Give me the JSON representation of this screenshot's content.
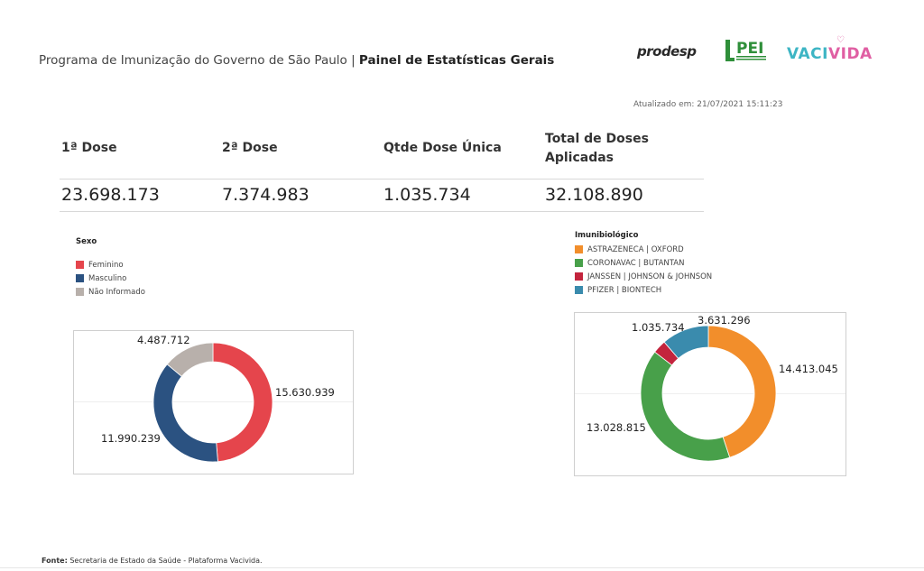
{
  "header": {
    "title_prefix": "Programa de Imunização do Governo de São Paulo | ",
    "title_bold": "Painel de Estatísticas Gerais",
    "updated": "Atualizado em: 21/07/2021 15:11:23"
  },
  "logos": {
    "prodesp": "prodesp",
    "pei": "PEI",
    "vacivida_part1": "VACI",
    "vacivida_part2": "VIDA"
  },
  "kpis": [
    {
      "label": "1ª Dose",
      "value": "23.698.173"
    },
    {
      "label": "2ª Dose",
      "value": "7.374.983"
    },
    {
      "label": "Qtde Dose Única",
      "value": "1.035.734"
    },
    {
      "label": "Total de Doses Aplicadas",
      "value": "32.108.890"
    }
  ],
  "footer": {
    "label": "Fonte:",
    "text": " Secretaria de Estado da Saúde - Plataforma Vacivida."
  },
  "chart_data": [
    {
      "type": "pie",
      "legend_title": "Sexo",
      "categories": [
        "Feminino",
        "Masculino",
        "Não Informado"
      ],
      "values": [
        15630939,
        11990239,
        4487712
      ],
      "labels": [
        "15.630.939",
        "11.990.239",
        "4.487.712"
      ],
      "colors": [
        "#e5454c",
        "#2b5281",
        "#b8b0ab"
      ],
      "legend_position": "top-left"
    },
    {
      "type": "pie",
      "legend_title": "Imunibiológico",
      "categories": [
        "ASTRAZENECA | OXFORD",
        "CORONAVAC | BUTANTAN",
        "JANSSEN | JOHNSON & JOHNSON",
        "PFIZER | BIONTECH"
      ],
      "values": [
        14413045,
        13028815,
        1035734,
        3631296
      ],
      "labels": [
        "14.413.045",
        "13.028.815",
        "1.035.734",
        "3.631.296"
      ],
      "colors": [
        "#f28e2b",
        "#48a04a",
        "#c3243d",
        "#3a8bad"
      ],
      "legend_position": "top-left"
    }
  ]
}
